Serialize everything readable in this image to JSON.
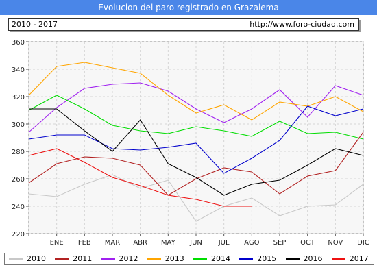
{
  "header": {
    "title": "Evolucion del paro registrado en Grazalema",
    "range_label": "2010 - 2017",
    "url": "http://www.foro-ciudad.com"
  },
  "chart_data": {
    "type": "line",
    "categories": [
      "",
      "ENE",
      "FEB",
      "MAR",
      "ABR",
      "MAY",
      "JUN",
      "JUL",
      "AGO",
      "SEP",
      "OCT",
      "NOV",
      "DIC"
    ],
    "y_ticks": [
      "220",
      "240",
      "260",
      "280",
      "300",
      "320",
      "340",
      "360"
    ],
    "ylim": [
      220,
      360
    ],
    "grid": true,
    "legend_position": "bottom",
    "series": [
      {
        "name": "2010",
        "color": "#c8c8c8",
        "values": [
          249,
          247,
          256,
          263,
          253,
          259,
          229,
          240,
          246,
          233,
          240,
          241,
          256
        ]
      },
      {
        "name": "2011",
        "color": "#b22222",
        "values": [
          257,
          271,
          276,
          275,
          270,
          248,
          260,
          268,
          265,
          249,
          262,
          266,
          294
        ]
      },
      {
        "name": "2012",
        "color": "#a020f0",
        "values": [
          294,
          312,
          326,
          329,
          330,
          324,
          311,
          301,
          311,
          325,
          305,
          328,
          321
        ]
      },
      {
        "name": "2013",
        "color": "#ffa500",
        "values": [
          321,
          342,
          345,
          341,
          337,
          321,
          308,
          314,
          303,
          316,
          313,
          320,
          309
        ]
      },
      {
        "name": "2014",
        "color": "#00dd00",
        "values": [
          310,
          321,
          311,
          299,
          295,
          293,
          298,
          295,
          291,
          302,
          293,
          294,
          289
        ]
      },
      {
        "name": "2015",
        "color": "#0000cc",
        "values": [
          289,
          292,
          292,
          282,
          281,
          283,
          286,
          264,
          275,
          288,
          313,
          306,
          311
        ]
      },
      {
        "name": "2016",
        "color": "#000000",
        "values": [
          311,
          311,
          295,
          280,
          303,
          271,
          261,
          248,
          256,
          259,
          270,
          282,
          277
        ]
      },
      {
        "name": "2017",
        "color": "#ee1111",
        "values": [
          277,
          282,
          272,
          261,
          255,
          248,
          245,
          240,
          240,
          null,
          null,
          null,
          null
        ]
      }
    ]
  }
}
